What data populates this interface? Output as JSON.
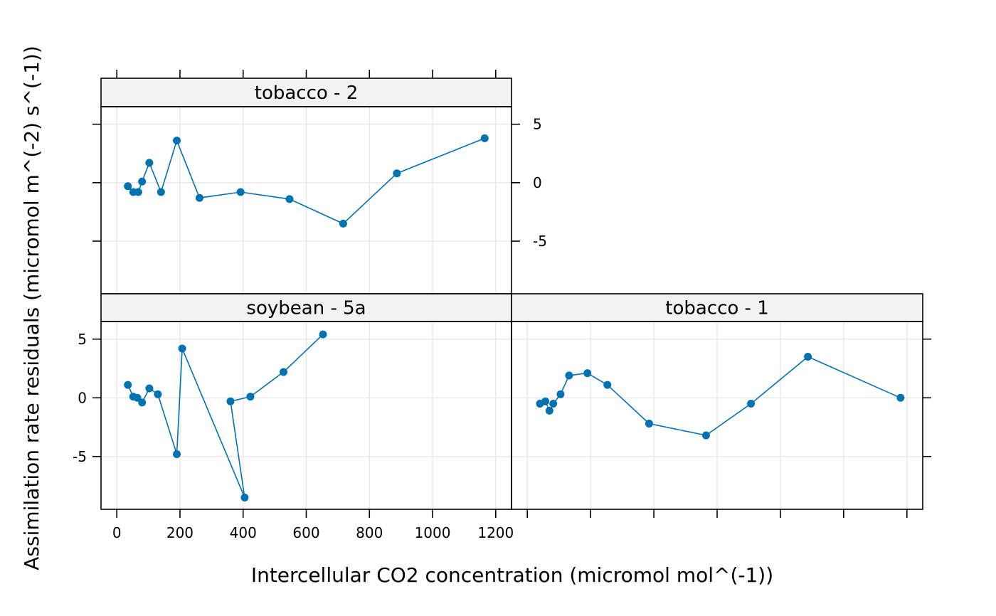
{
  "chart_data": {
    "type": "line",
    "xlabel": "Intercellular CO2 concentration (micromol mol^(-1))",
    "ylabel": "Assimilation rate residuals (micromol m^(-2) s^(-1))",
    "xlim": [
      -50,
      1250
    ],
    "ylim": [
      -9.5,
      6.5
    ],
    "x_ticks": [
      0,
      200,
      400,
      600,
      800,
      1000,
      1200
    ],
    "y_ticks": [
      -5,
      0,
      5
    ],
    "grid": true,
    "color": "#0072b2",
    "strip_color": "#f2f2f2",
    "panels": [
      {
        "name": "tobacco - 2",
        "x": [
          35,
          52,
          68,
          80,
          103,
          140,
          190,
          262,
          392,
          547,
          717,
          887,
          1165
        ],
        "y": [
          -0.3,
          -0.8,
          -0.8,
          0.1,
          1.7,
          -0.8,
          3.6,
          -1.3,
          -0.8,
          -1.4,
          -3.5,
          0.8,
          3.8
        ]
      },
      {
        "name": "soybean - 5a",
        "x": [
          35,
          52,
          65,
          80,
          103,
          130,
          190,
          207,
          405,
          360,
          423,
          528,
          653
        ],
        "y": [
          1.1,
          0.1,
          0.0,
          -0.4,
          0.8,
          0.3,
          -4.8,
          4.2,
          -8.5,
          -0.3,
          0.1,
          2.2,
          5.4
        ]
      },
      {
        "name": "tobacco - 1",
        "x": [
          40,
          57,
          70,
          82,
          105,
          132,
          190,
          253,
          385,
          565,
          707,
          887,
          1180
        ],
        "y": [
          -0.5,
          -0.3,
          -1.1,
          -0.5,
          0.3,
          1.9,
          2.1,
          1.1,
          -2.2,
          -3.2,
          -0.5,
          3.5,
          0.0
        ]
      }
    ]
  }
}
